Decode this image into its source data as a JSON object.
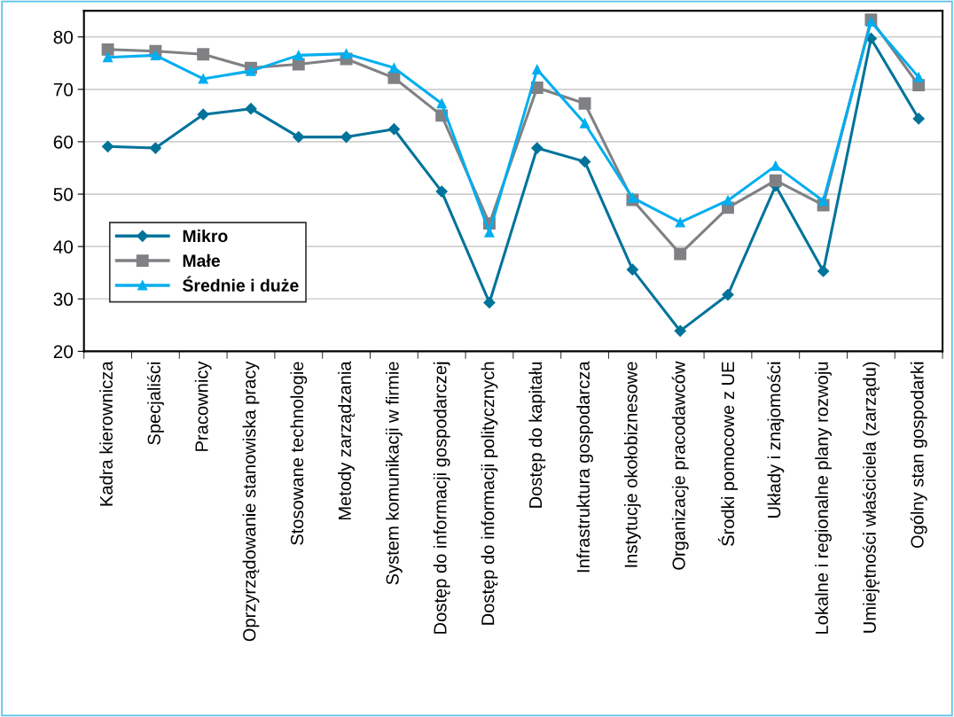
{
  "chart_data": {
    "type": "line",
    "categories": [
      "Kadra kierownicza",
      "Specjaliści",
      "Pracownicy",
      "Oprzyrządowanie stanowiska pracy",
      "Stosowane technologie",
      "Metody zarządzania",
      "System komunikacji w firmie",
      "Dostęp do informacji gospodarczej",
      "Dostęp do informacji politycznych",
      "Dostęp do kapitału",
      "Infrastruktura gospodarcza",
      "Instytucje okołobiznesowe",
      "Organizacje pracodawców",
      "Środki pomocowe z UE",
      "Układy i znajomości",
      "Lokalne i regionalne plany rozwoju",
      "Umiejętności właściciela (zarządu)",
      "Ogólny stan gospodarki"
    ],
    "series": [
      {
        "name": "Mikro",
        "color": "#00739a",
        "marker": "diamond",
        "values": [
          59.1,
          58.8,
          65.2,
          66.3,
          60.9,
          60.9,
          62.4,
          50.5,
          29.3,
          58.8,
          56.2,
          35.6,
          23.9,
          30.8,
          51.6,
          35.3,
          79.7,
          64.4
        ]
      },
      {
        "name": "Małe",
        "color": "#808184",
        "marker": "square",
        "values": [
          77.6,
          77.3,
          76.7,
          74.1,
          74.8,
          75.8,
          72.2,
          65.0,
          44.4,
          70.3,
          67.3,
          48.9,
          38.6,
          47.4,
          52.6,
          47.9,
          83.3,
          70.8
        ]
      },
      {
        "name": "Średnie i duże",
        "color": "#00aeef",
        "marker": "triangle",
        "values": [
          76.1,
          76.5,
          72.0,
          73.5,
          76.5,
          76.8,
          74.1,
          67.3,
          42.7,
          73.8,
          63.5,
          49.3,
          44.6,
          48.8,
          55.4,
          48.7,
          82.9,
          72.3
        ]
      }
    ],
    "ylim": [
      20,
      85
    ],
    "yticks": [
      20,
      30,
      40,
      50,
      60,
      70,
      80
    ],
    "grid": "y",
    "legend": "bottom left",
    "line_style": "solid"
  }
}
